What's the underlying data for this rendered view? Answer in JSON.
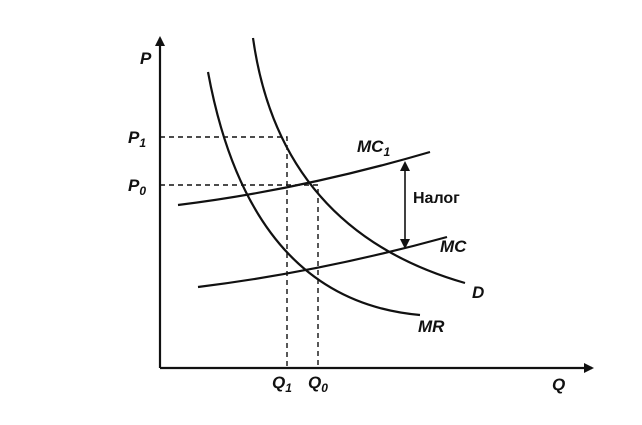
{
  "axes": {
    "y": "P",
    "x": "Q"
  },
  "prices": [
    {
      "text": "P",
      "sub": "1"
    },
    {
      "text": "P",
      "sub": "0"
    }
  ],
  "quantities": [
    {
      "text": "Q",
      "sub": "1"
    },
    {
      "text": "Q",
      "sub": "0"
    }
  ],
  "curves": {
    "mc1": {
      "text": "MC",
      "sub": "1"
    },
    "mc": "MC",
    "d": "D",
    "mr": "MR"
  },
  "tax": "Налог"
}
